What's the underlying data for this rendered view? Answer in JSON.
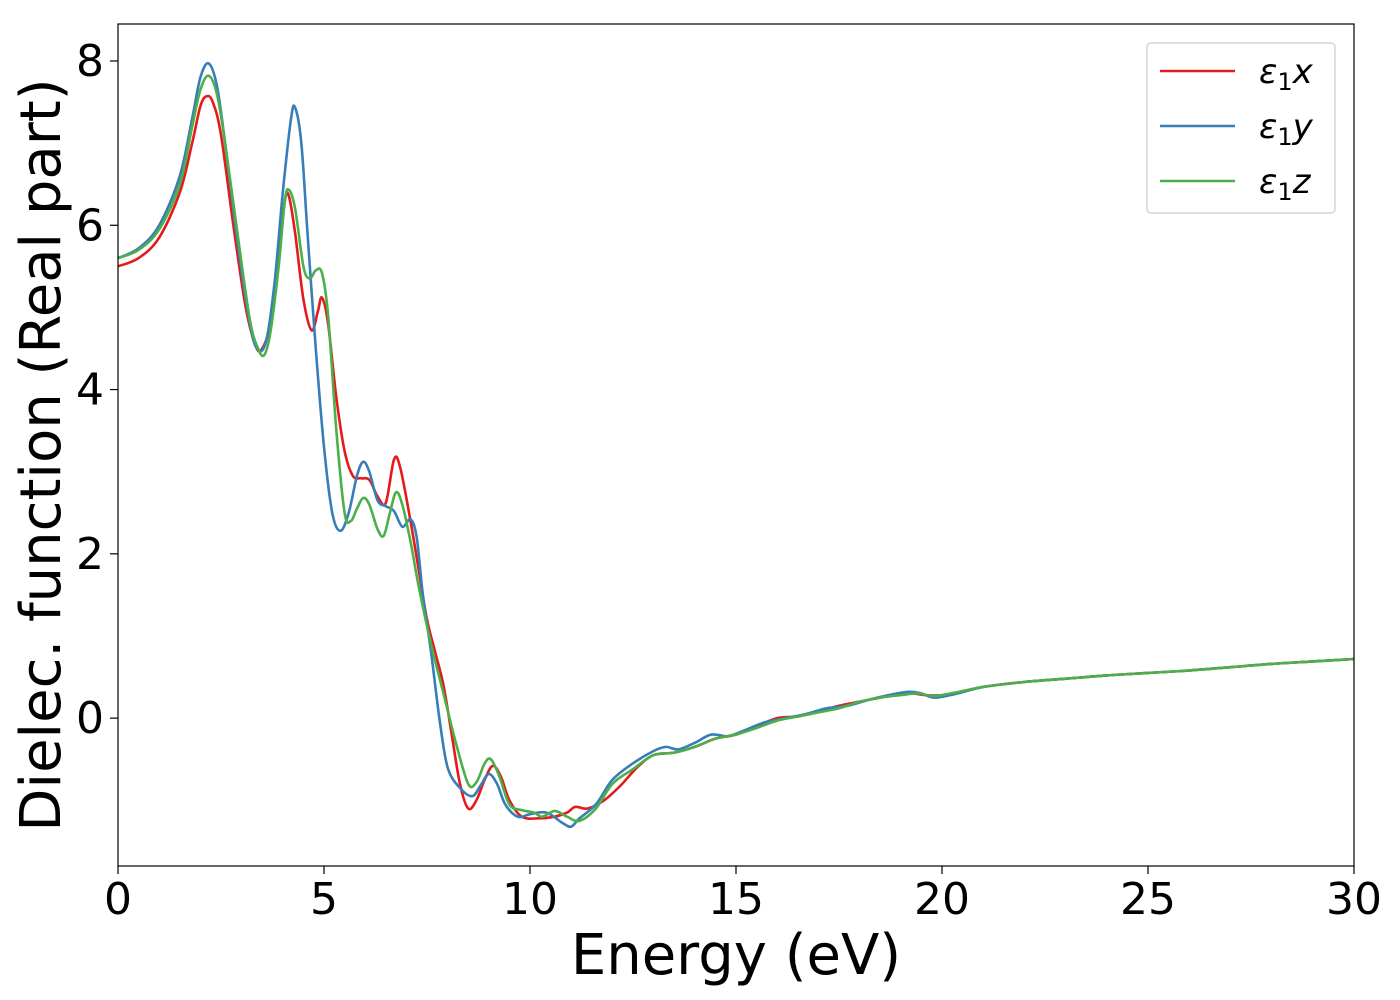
{
  "chart_data": {
    "type": "line",
    "xlabel": "Energy (eV)",
    "ylabel": "Dielec. function (Real part)",
    "xlim": [
      0,
      30
    ],
    "ylim": [
      -1.8,
      8.45
    ],
    "xticks": [
      0,
      5,
      10,
      15,
      20,
      25,
      30
    ],
    "yticks": [
      0,
      2,
      4,
      6,
      8
    ],
    "grid": false,
    "legend_position": "top-right",
    "series": [
      {
        "name": "ε1x",
        "legend_main": "ε",
        "legend_sub": "1",
        "legend_tail": "x",
        "color": "#e41a1c",
        "points": [
          [
            0,
            5.5
          ],
          [
            0.5,
            5.6
          ],
          [
            1.0,
            5.85
          ],
          [
            1.5,
            6.4
          ],
          [
            1.8,
            7.0
          ],
          [
            2.0,
            7.45
          ],
          [
            2.15,
            7.57
          ],
          [
            2.3,
            7.5
          ],
          [
            2.5,
            7.1
          ],
          [
            2.8,
            6.0
          ],
          [
            3.1,
            5.0
          ],
          [
            3.35,
            4.52
          ],
          [
            3.5,
            4.5
          ],
          [
            3.7,
            4.8
          ],
          [
            3.9,
            5.6
          ],
          [
            4.05,
            6.3
          ],
          [
            4.15,
            6.35
          ],
          [
            4.3,
            5.9
          ],
          [
            4.5,
            5.1
          ],
          [
            4.7,
            4.72
          ],
          [
            4.85,
            4.95
          ],
          [
            4.95,
            5.12
          ],
          [
            5.1,
            4.8
          ],
          [
            5.3,
            3.9
          ],
          [
            5.5,
            3.25
          ],
          [
            5.7,
            2.95
          ],
          [
            5.9,
            2.92
          ],
          [
            6.1,
            2.9
          ],
          [
            6.3,
            2.7
          ],
          [
            6.5,
            2.62
          ],
          [
            6.7,
            3.15
          ],
          [
            6.85,
            3.05
          ],
          [
            7.1,
            2.4
          ],
          [
            7.3,
            1.8
          ],
          [
            7.5,
            1.2
          ],
          [
            7.7,
            0.8
          ],
          [
            7.9,
            0.4
          ],
          [
            8.1,
            -0.2
          ],
          [
            8.3,
            -0.8
          ],
          [
            8.5,
            -1.1
          ],
          [
            8.7,
            -1.0
          ],
          [
            8.9,
            -0.75
          ],
          [
            9.1,
            -0.58
          ],
          [
            9.3,
            -0.72
          ],
          [
            9.5,
            -1.0
          ],
          [
            9.8,
            -1.2
          ],
          [
            10.2,
            -1.22
          ],
          [
            10.6,
            -1.2
          ],
          [
            10.9,
            -1.15
          ],
          [
            11.1,
            -1.08
          ],
          [
            11.4,
            -1.1
          ],
          [
            11.8,
            -1.0
          ],
          [
            12.2,
            -0.82
          ],
          [
            12.6,
            -0.6
          ],
          [
            13.0,
            -0.45
          ],
          [
            13.5,
            -0.42
          ],
          [
            14.0,
            -0.35
          ],
          [
            14.5,
            -0.25
          ],
          [
            15.0,
            -0.2
          ],
          [
            15.5,
            -0.1
          ],
          [
            16.0,
            0.0
          ],
          [
            16.5,
            0.02
          ],
          [
            17.0,
            0.08
          ],
          [
            17.5,
            0.15
          ],
          [
            18.0,
            0.2
          ],
          [
            18.5,
            0.25
          ],
          [
            19.0,
            0.3
          ],
          [
            19.3,
            0.3
          ],
          [
            19.6,
            0.28
          ],
          [
            20.0,
            0.28
          ],
          [
            20.5,
            0.32
          ],
          [
            21.0,
            0.38
          ],
          [
            22.0,
            0.44
          ],
          [
            23.0,
            0.48
          ],
          [
            24.0,
            0.52
          ],
          [
            25.0,
            0.55
          ],
          [
            26.0,
            0.58
          ],
          [
            27.0,
            0.62
          ],
          [
            28.0,
            0.66
          ],
          [
            29.0,
            0.69
          ],
          [
            30.0,
            0.72
          ]
        ]
      },
      {
        "name": "ε1y",
        "legend_main": "ε",
        "legend_sub": "1",
        "legend_tail": "y",
        "color": "#377eb8",
        "points": [
          [
            0,
            5.6
          ],
          [
            0.5,
            5.72
          ],
          [
            1.0,
            6.0
          ],
          [
            1.5,
            6.6
          ],
          [
            1.8,
            7.3
          ],
          [
            2.0,
            7.8
          ],
          [
            2.2,
            7.97
          ],
          [
            2.4,
            7.7
          ],
          [
            2.6,
            7.0
          ],
          [
            2.9,
            5.8
          ],
          [
            3.2,
            4.8
          ],
          [
            3.4,
            4.48
          ],
          [
            3.6,
            4.6
          ],
          [
            3.8,
            5.3
          ],
          [
            4.0,
            6.4
          ],
          [
            4.2,
            7.3
          ],
          [
            4.3,
            7.43
          ],
          [
            4.45,
            7.0
          ],
          [
            4.6,
            5.9
          ],
          [
            4.8,
            4.5
          ],
          [
            5.0,
            3.3
          ],
          [
            5.2,
            2.5
          ],
          [
            5.4,
            2.28
          ],
          [
            5.6,
            2.5
          ],
          [
            5.8,
            2.95
          ],
          [
            5.95,
            3.12
          ],
          [
            6.1,
            3.0
          ],
          [
            6.3,
            2.65
          ],
          [
            6.5,
            2.58
          ],
          [
            6.7,
            2.52
          ],
          [
            6.9,
            2.33
          ],
          [
            7.1,
            2.42
          ],
          [
            7.25,
            2.2
          ],
          [
            7.4,
            1.5
          ],
          [
            7.6,
            0.8
          ],
          [
            7.8,
            0.0
          ],
          [
            8.0,
            -0.6
          ],
          [
            8.3,
            -0.85
          ],
          [
            8.6,
            -0.95
          ],
          [
            8.8,
            -0.82
          ],
          [
            9.0,
            -0.68
          ],
          [
            9.2,
            -0.8
          ],
          [
            9.4,
            -1.05
          ],
          [
            9.7,
            -1.2
          ],
          [
            10.0,
            -1.17
          ],
          [
            10.4,
            -1.15
          ],
          [
            10.8,
            -1.28
          ],
          [
            11.0,
            -1.32
          ],
          [
            11.2,
            -1.22
          ],
          [
            11.6,
            -1.05
          ],
          [
            12.0,
            -0.75
          ],
          [
            12.5,
            -0.55
          ],
          [
            13.0,
            -0.4
          ],
          [
            13.3,
            -0.35
          ],
          [
            13.6,
            -0.38
          ],
          [
            14.0,
            -0.3
          ],
          [
            14.4,
            -0.2
          ],
          [
            14.8,
            -0.22
          ],
          [
            15.2,
            -0.15
          ],
          [
            15.7,
            -0.05
          ],
          [
            16.2,
            0.0
          ],
          [
            16.7,
            0.05
          ],
          [
            17.2,
            0.12
          ],
          [
            17.7,
            0.15
          ],
          [
            18.2,
            0.22
          ],
          [
            18.7,
            0.28
          ],
          [
            19.2,
            0.32
          ],
          [
            19.5,
            0.3
          ],
          [
            19.8,
            0.25
          ],
          [
            20.2,
            0.28
          ],
          [
            20.6,
            0.33
          ],
          [
            21.0,
            0.38
          ],
          [
            22.0,
            0.44
          ],
          [
            23.0,
            0.48
          ],
          [
            24.0,
            0.52
          ],
          [
            25.0,
            0.55
          ],
          [
            26.0,
            0.58
          ],
          [
            27.0,
            0.62
          ],
          [
            28.0,
            0.66
          ],
          [
            29.0,
            0.69
          ],
          [
            30.0,
            0.72
          ]
        ]
      },
      {
        "name": "ε1z",
        "legend_main": "ε",
        "legend_sub": "1",
        "legend_tail": "z",
        "color": "#4daf4a",
        "points": [
          [
            0,
            5.6
          ],
          [
            0.5,
            5.7
          ],
          [
            1.0,
            5.95
          ],
          [
            1.5,
            6.5
          ],
          [
            1.8,
            7.2
          ],
          [
            2.0,
            7.65
          ],
          [
            2.2,
            7.82
          ],
          [
            2.4,
            7.6
          ],
          [
            2.6,
            7.0
          ],
          [
            2.9,
            5.9
          ],
          [
            3.2,
            4.85
          ],
          [
            3.4,
            4.5
          ],
          [
            3.55,
            4.42
          ],
          [
            3.7,
            4.7
          ],
          [
            3.9,
            5.5
          ],
          [
            4.05,
            6.3
          ],
          [
            4.15,
            6.43
          ],
          [
            4.3,
            6.2
          ],
          [
            4.5,
            5.5
          ],
          [
            4.65,
            5.35
          ],
          [
            4.8,
            5.45
          ],
          [
            4.95,
            5.42
          ],
          [
            5.1,
            4.9
          ],
          [
            5.3,
            3.5
          ],
          [
            5.5,
            2.5
          ],
          [
            5.65,
            2.4
          ],
          [
            5.8,
            2.55
          ],
          [
            5.95,
            2.68
          ],
          [
            6.1,
            2.6
          ],
          [
            6.3,
            2.3
          ],
          [
            6.45,
            2.22
          ],
          [
            6.6,
            2.5
          ],
          [
            6.75,
            2.75
          ],
          [
            6.9,
            2.6
          ],
          [
            7.1,
            2.15
          ],
          [
            7.3,
            1.6
          ],
          [
            7.6,
            0.9
          ],
          [
            7.9,
            0.3
          ],
          [
            8.2,
            -0.3
          ],
          [
            8.5,
            -0.8
          ],
          [
            8.7,
            -0.78
          ],
          [
            8.9,
            -0.55
          ],
          [
            9.05,
            -0.5
          ],
          [
            9.25,
            -0.7
          ],
          [
            9.5,
            -1.05
          ],
          [
            9.8,
            -1.12
          ],
          [
            10.1,
            -1.15
          ],
          [
            10.3,
            -1.2
          ],
          [
            10.6,
            -1.13
          ],
          [
            10.9,
            -1.2
          ],
          [
            11.2,
            -1.25
          ],
          [
            11.6,
            -1.1
          ],
          [
            12.0,
            -0.8
          ],
          [
            12.5,
            -0.62
          ],
          [
            13.0,
            -0.45
          ],
          [
            13.5,
            -0.42
          ],
          [
            14.0,
            -0.35
          ],
          [
            14.5,
            -0.25
          ],
          [
            15.0,
            -0.2
          ],
          [
            15.5,
            -0.12
          ],
          [
            16.0,
            -0.03
          ],
          [
            16.5,
            0.02
          ],
          [
            17.0,
            0.07
          ],
          [
            17.5,
            0.12
          ],
          [
            18.0,
            0.2
          ],
          [
            18.5,
            0.25
          ],
          [
            19.0,
            0.28
          ],
          [
            19.4,
            0.3
          ],
          [
            19.8,
            0.27
          ],
          [
            20.2,
            0.3
          ],
          [
            20.6,
            0.34
          ],
          [
            21.0,
            0.38
          ],
          [
            22.0,
            0.44
          ],
          [
            23.0,
            0.48
          ],
          [
            24.0,
            0.52
          ],
          [
            25.0,
            0.55
          ],
          [
            26.0,
            0.58
          ],
          [
            27.0,
            0.62
          ],
          [
            28.0,
            0.66
          ],
          [
            29.0,
            0.69
          ],
          [
            30.0,
            0.72
          ]
        ]
      }
    ]
  }
}
